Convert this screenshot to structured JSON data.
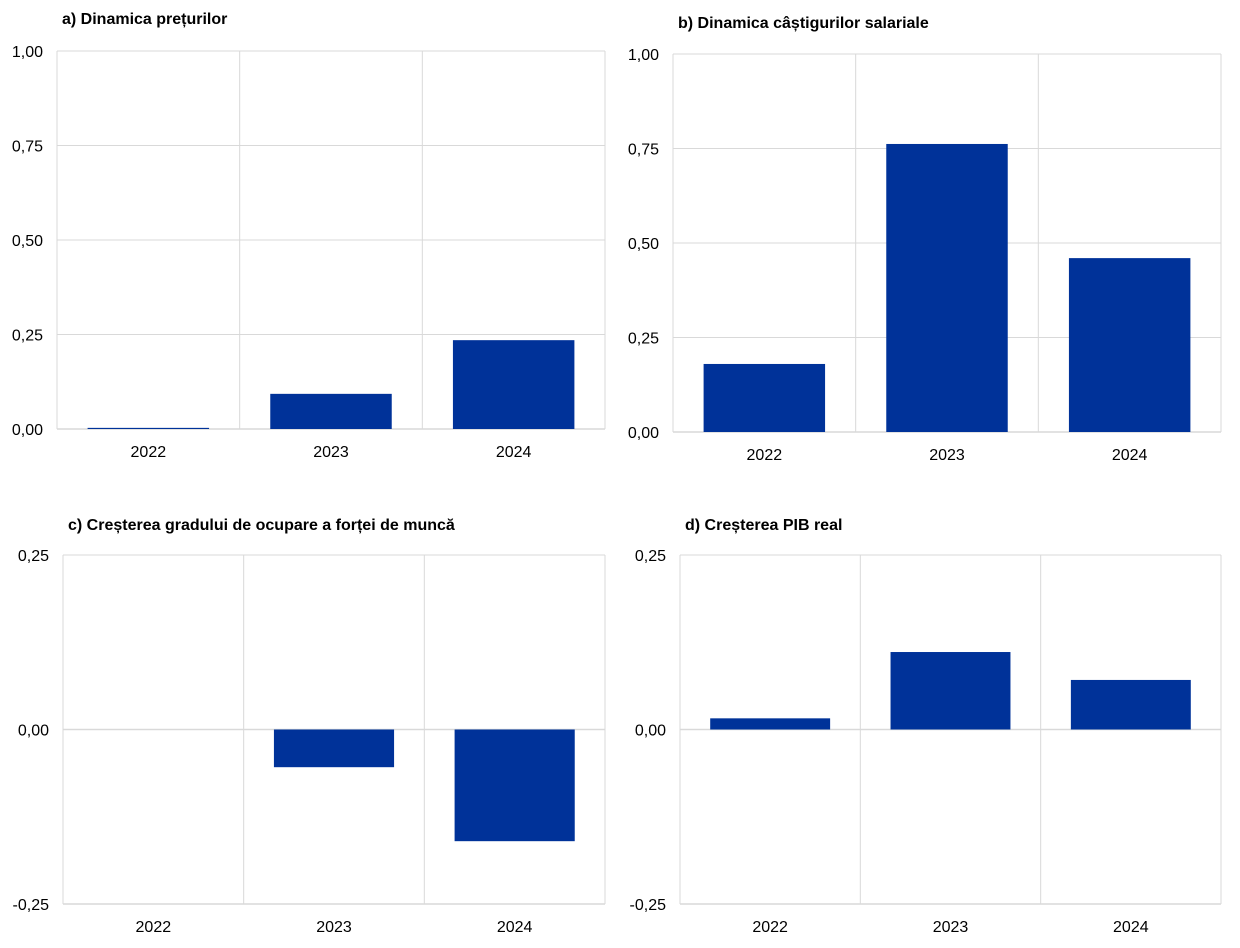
{
  "chart_data": [
    {
      "type": "bar",
      "title": "a) Dinamica prețurilor",
      "categories": [
        "2022",
        "2023",
        "2024"
      ],
      "values": [
        0.003,
        0.093,
        0.235
      ],
      "ylim": [
        0,
        1
      ],
      "yticks": [
        "0,00",
        "0,25",
        "0,50",
        "0,75",
        "1,00"
      ],
      "ytick_values": [
        0,
        0.25,
        0.5,
        0.75,
        1
      ],
      "grid": true,
      "color": "#003299"
    },
    {
      "type": "bar",
      "title": "b) Dinamica câștigurilor salariale",
      "categories": [
        "2022",
        "2023",
        "2024"
      ],
      "values": [
        0.18,
        0.762,
        0.46
      ],
      "ylim": [
        0,
        1
      ],
      "yticks": [
        "0,00",
        "0,25",
        "0,50",
        "0,75",
        "1,00"
      ],
      "ytick_values": [
        0,
        0.25,
        0.5,
        0.75,
        1
      ],
      "grid": true,
      "color": "#003299"
    },
    {
      "type": "bar",
      "title": "c) Creșterea gradului de ocupare a forței de muncă",
      "categories": [
        "2022",
        "2023",
        "2024"
      ],
      "values": [
        0,
        -0.054,
        -0.16
      ],
      "ylim": [
        -0.25,
        0.25
      ],
      "yticks": [
        "-0,25",
        "0,00",
        "0,25"
      ],
      "ytick_values": [
        -0.25,
        0,
        0.25
      ],
      "grid": true,
      "color": "#003299"
    },
    {
      "type": "bar",
      "title": "d) Creșterea PIB real",
      "categories": [
        "2022",
        "2023",
        "2024"
      ],
      "values": [
        0.016,
        0.111,
        0.071
      ],
      "ylim": [
        -0.25,
        0.25
      ],
      "yticks": [
        "-0,25",
        "0,00",
        "0,25"
      ],
      "ytick_values": [
        -0.25,
        0,
        0.25
      ],
      "grid": true,
      "color": "#003299"
    }
  ]
}
